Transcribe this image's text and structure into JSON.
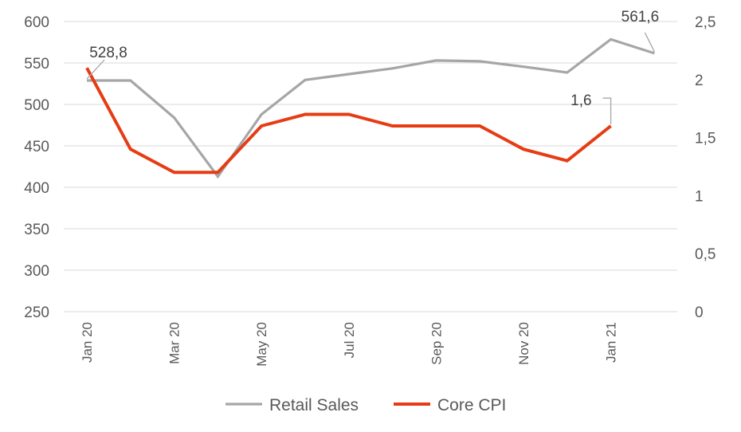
{
  "chart_data": {
    "type": "line",
    "x": [
      "Jan 20",
      "Feb 20",
      "Mar 20",
      "Apr 20",
      "May 20",
      "Jun 20",
      "Jul 20",
      "Aug 20",
      "Sep 20",
      "Oct 20",
      "Nov 20",
      "Dec 20",
      "Jan 21",
      "Feb 21"
    ],
    "x_tick_labels": [
      "Jan 20",
      "Mar 20",
      "May 20",
      "Jul 20",
      "Sep 20",
      "Nov 20",
      "Jan 21"
    ],
    "y_left": {
      "ylim": [
        250,
        600
      ],
      "ticks": [
        "250",
        "300",
        "350",
        "400",
        "450",
        "500",
        "550",
        "600"
      ]
    },
    "y_right": {
      "ylim": [
        0,
        2.5
      ],
      "ticks": [
        "0",
        "0,5",
        "1",
        "1,5",
        "2",
        "2,5"
      ]
    },
    "grid": true,
    "legend_position": "bottom",
    "series": [
      {
        "name": "Retail Sales",
        "axis": "left",
        "color": "#a6a6a6",
        "values": [
          528.8,
          528.8,
          484,
          413,
          488,
          529.5,
          536.5,
          543.5,
          553,
          552,
          545.5,
          538.5,
          578.5,
          561.6
        ]
      },
      {
        "name": "Core CPI",
        "axis": "right",
        "color": "#e63c14",
        "values": [
          2.1,
          1.4,
          1.2,
          1.2,
          1.6,
          1.7,
          1.7,
          1.6,
          1.6,
          1.6,
          1.4,
          1.3,
          1.6,
          null
        ]
      }
    ],
    "annotations": [
      {
        "text": "528,8",
        "series": "Retail Sales",
        "index": 0
      },
      {
        "text": "561,6",
        "series": "Retail Sales",
        "index": 13
      },
      {
        "text": "1,6",
        "series": "Core CPI",
        "index": 12
      }
    ]
  }
}
